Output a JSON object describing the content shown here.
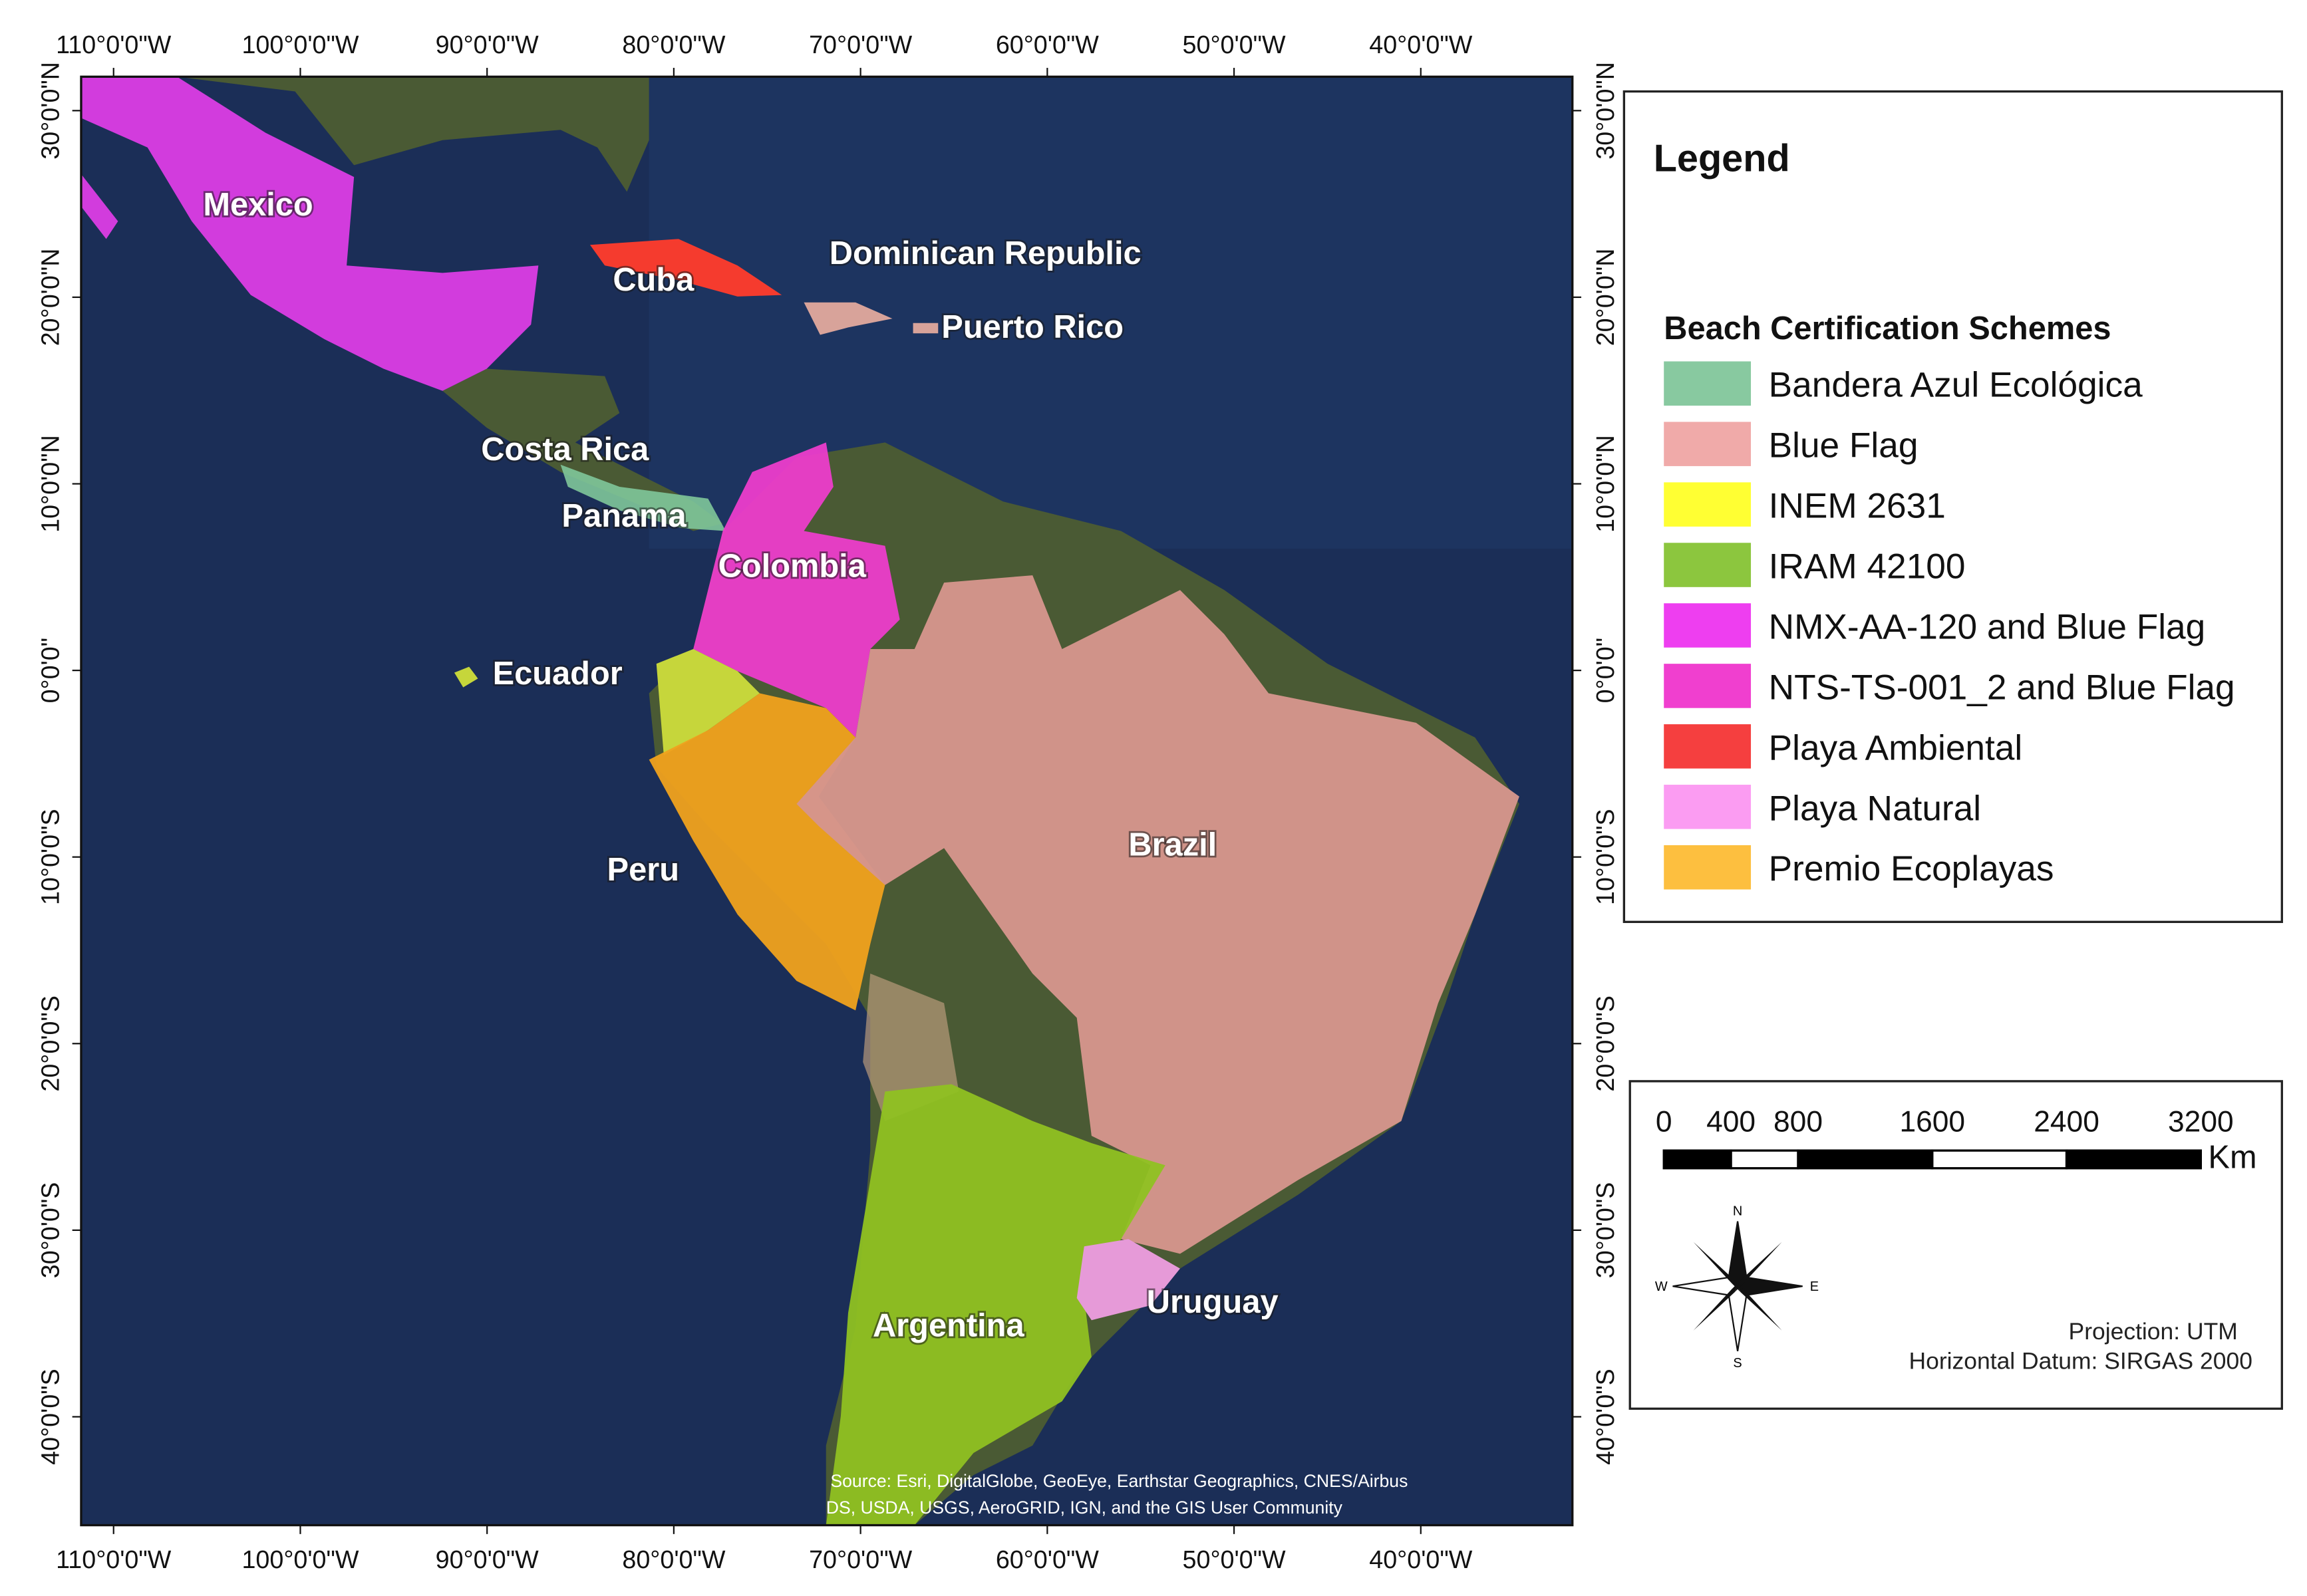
{
  "graticule": {
    "longitudes": [
      "110°0'0\"W",
      "100°0'0\"W",
      "90°0'0\"W",
      "80°0'0\"W",
      "70°0'0\"W",
      "60°0'0\"W",
      "50°0'0\"W",
      "40°0'0\"W"
    ],
    "latitudes": [
      "30°0'0\"N",
      "20°0'0\"N",
      "10°0'0\"N",
      "0°0'0\"",
      "10°0'0\"S",
      "20°0'0\"S",
      "30°0'0\"S",
      "40°0'0\"S"
    ]
  },
  "places": [
    "Mexico",
    "Dominican Republic",
    "Cuba",
    "Puerto Rico",
    "Costa Rica",
    "Panama",
    "Colombia",
    "Ecuador",
    "Peru",
    "Brazil",
    "Uruguay",
    "Argentina"
  ],
  "source": [
    "Source: Esri, DigitalGlobe, GeoEye, Earthstar Geographics, CNES/Airbus",
    "DS, USDA, USGS, AeroGRID, IGN, and the GIS User Community"
  ],
  "legend": {
    "title": "Legend",
    "subtitle": "Beach Certification Schemes",
    "items": [
      {
        "label": "Bandera Azul Ecológica",
        "color": "#88c9a0"
      },
      {
        "label": "Blue Flag",
        "color": "#f0aaa9"
      },
      {
        "label": "INEM 2631",
        "color": "#ffff33"
      },
      {
        "label": "IRAM 42100",
        "color": "#8cc63e"
      },
      {
        "label": "NMX-AA-120 and Blue Flag",
        "color": "#ee3ef0"
      },
      {
        "label": "NTS-TS-001_2 and Blue Flag",
        "color": "#f03fcf"
      },
      {
        "label": "Playa Ambiental",
        "color": "#f53f3f"
      },
      {
        "label": "Playa Natural",
        "color": "#fb9cf2"
      },
      {
        "label": "Premio Ecoplayas",
        "color": "#fdbf3f"
      }
    ]
  },
  "scale_bar": {
    "ticks": [
      0,
      400,
      800,
      1600,
      2400,
      3200
    ],
    "unit": "Km"
  },
  "north_arrow": {
    "n": "N",
    "s": "S",
    "e": "E",
    "w": "W"
  },
  "projection": [
    "Projection: UTM",
    "Horizontal Datum: SIRGAS 2000"
  ]
}
